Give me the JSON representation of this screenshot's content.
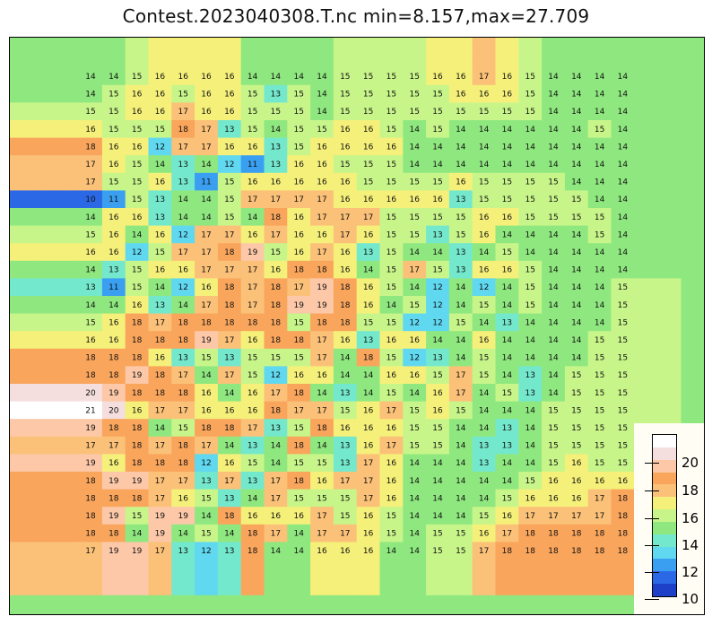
{
  "title": "Contest.2023040308.T.nc min=8.157,max=27.709",
  "colors": {
    "levels": [
      "#1e3fc7",
      "#2a68e6",
      "#3a9ff0",
      "#5fd8f0",
      "#74e8cc",
      "#8fe87f",
      "#c8f58a",
      "#f5f07a",
      "#fbc178",
      "#f9a55c",
      "#fcc8a8",
      "#f5dede",
      "#ffffff"
    ]
  },
  "colorbar": {
    "labels": [
      "20",
      "18",
      "16",
      "14",
      "12",
      "10"
    ]
  },
  "grid": [
    [
      14,
      14,
      15,
      16,
      16,
      16,
      16,
      14,
      14,
      14,
      14,
      15,
      15,
      15,
      15,
      16,
      16,
      17,
      16,
      15,
      14,
      14,
      14,
      14
    ],
    [
      14,
      15,
      16,
      16,
      15,
      16,
      16,
      15,
      13,
      15,
      14,
      15,
      15,
      15,
      15,
      15,
      16,
      16,
      16,
      15,
      14,
      14,
      14,
      14
    ],
    [
      15,
      15,
      16,
      16,
      17,
      16,
      16,
      15,
      15,
      15,
      14,
      15,
      15,
      15,
      15,
      15,
      15,
      15,
      15,
      15,
      14,
      14,
      14,
      14
    ],
    [
      16,
      15,
      15,
      15,
      18,
      17,
      13,
      15,
      14,
      15,
      15,
      16,
      16,
      15,
      14,
      15,
      14,
      14,
      14,
      14,
      14,
      14,
      15,
      14
    ],
    [
      18,
      16,
      16,
      12,
      17,
      17,
      16,
      16,
      13,
      15,
      16,
      16,
      16,
      16,
      14,
      14,
      14,
      14,
      14,
      14,
      14,
      14,
      14,
      14
    ],
    [
      17,
      16,
      15,
      14,
      13,
      14,
      12,
      11,
      13,
      16,
      16,
      15,
      15,
      15,
      14,
      14,
      14,
      14,
      14,
      14,
      14,
      14,
      14,
      14
    ],
    [
      17,
      15,
      15,
      16,
      13,
      11,
      15,
      16,
      16,
      16,
      16,
      16,
      15,
      15,
      15,
      15,
      16,
      15,
      15,
      15,
      15,
      14,
      14,
      14
    ],
    [
      10,
      11,
      15,
      13,
      14,
      14,
      15,
      17,
      17,
      17,
      17,
      16,
      16,
      16,
      16,
      16,
      13,
      15,
      15,
      15,
      15,
      15,
      14,
      14
    ],
    [
      14,
      16,
      16,
      13,
      14,
      14,
      15,
      14,
      18,
      16,
      17,
      17,
      17,
      15,
      15,
      15,
      15,
      16,
      16,
      15,
      15,
      15,
      15,
      14
    ],
    [
      15,
      16,
      14,
      16,
      12,
      17,
      17,
      16,
      17,
      16,
      16,
      17,
      16,
      15,
      15,
      13,
      15,
      16,
      14,
      14,
      14,
      14,
      15,
      14
    ],
    [
      16,
      16,
      12,
      15,
      17,
      17,
      18,
      19,
      15,
      16,
      17,
      16,
      13,
      15,
      14,
      14,
      13,
      14,
      15,
      14,
      14,
      14,
      14,
      14
    ],
    [
      14,
      13,
      15,
      16,
      16,
      17,
      17,
      17,
      16,
      18,
      18,
      16,
      14,
      15,
      17,
      15,
      13,
      16,
      16,
      15,
      14,
      14,
      14,
      14
    ],
    [
      13,
      11,
      15,
      14,
      12,
      16,
      18,
      17,
      18,
      17,
      19,
      18,
      16,
      15,
      14,
      12,
      14,
      12,
      14,
      15,
      14,
      14,
      14,
      15
    ],
    [
      14,
      14,
      16,
      13,
      14,
      17,
      18,
      17,
      18,
      19,
      19,
      18,
      16,
      14,
      15,
      12,
      14,
      15,
      14,
      15,
      14,
      14,
      14,
      15
    ],
    [
      15,
      16,
      18,
      17,
      18,
      18,
      18,
      18,
      18,
      15,
      18,
      18,
      15,
      15,
      12,
      12,
      15,
      14,
      13,
      14,
      14,
      14,
      14,
      15
    ],
    [
      16,
      16,
      18,
      18,
      18,
      19,
      17,
      16,
      18,
      18,
      17,
      16,
      13,
      16,
      16,
      14,
      14,
      16,
      14,
      14,
      14,
      14,
      15,
      15
    ],
    [
      18,
      18,
      18,
      16,
      13,
      15,
      13,
      15,
      15,
      15,
      17,
      14,
      18,
      15,
      12,
      13,
      14,
      15,
      14,
      14,
      14,
      14,
      15,
      15
    ],
    [
      18,
      18,
      19,
      18,
      17,
      14,
      17,
      15,
      12,
      16,
      16,
      14,
      14,
      16,
      16,
      15,
      17,
      15,
      14,
      13,
      14,
      15,
      15,
      15
    ],
    [
      20,
      19,
      18,
      18,
      18,
      16,
      14,
      16,
      17,
      18,
      14,
      13,
      14,
      15,
      14,
      16,
      17,
      14,
      15,
      13,
      14,
      15,
      15,
      15
    ],
    [
      21,
      20,
      16,
      17,
      17,
      16,
      16,
      16,
      18,
      17,
      17,
      15,
      16,
      17,
      15,
      16,
      15,
      14,
      14,
      14,
      15,
      15,
      15,
      15
    ],
    [
      19,
      18,
      18,
      14,
      15,
      18,
      18,
      17,
      13,
      15,
      18,
      16,
      16,
      16,
      15,
      15,
      14,
      14,
      13,
      14,
      15,
      15,
      15,
      15
    ],
    [
      17,
      17,
      18,
      17,
      18,
      17,
      14,
      13,
      14,
      18,
      14,
      13,
      16,
      17,
      15,
      15,
      14,
      13,
      13,
      14,
      15,
      15,
      15,
      15
    ],
    [
      19,
      16,
      18,
      18,
      18,
      12,
      16,
      15,
      14,
      15,
      15,
      13,
      17,
      16,
      14,
      14,
      14,
      13,
      14,
      14,
      15,
      16,
      15,
      15
    ],
    [
      18,
      19,
      19,
      17,
      17,
      13,
      17,
      13,
      17,
      18,
      16,
      17,
      17,
      16,
      14,
      14,
      14,
      14,
      14,
      15,
      16,
      16,
      16,
      16
    ],
    [
      18,
      18,
      18,
      17,
      16,
      15,
      13,
      14,
      17,
      15,
      15,
      15,
      17,
      16,
      14,
      14,
      14,
      14,
      15,
      16,
      16,
      16,
      17,
      18
    ],
    [
      18,
      19,
      15,
      19,
      19,
      14,
      18,
      16,
      16,
      16,
      17,
      15,
      16,
      15,
      14,
      14,
      14,
      15,
      16,
      17,
      17,
      17,
      17,
      18
    ],
    [
      18,
      18,
      14,
      19,
      14,
      15,
      14,
      18,
      17,
      14,
      17,
      17,
      16,
      15,
      14,
      15,
      15,
      16,
      17,
      18,
      18,
      18,
      18,
      18
    ],
    [
      17,
      19,
      19,
      17,
      13,
      12,
      13,
      18,
      14,
      14,
      16,
      16,
      16,
      14,
      14,
      15,
      15,
      17,
      18,
      18,
      18,
      18,
      18,
      18
    ]
  ]
}
